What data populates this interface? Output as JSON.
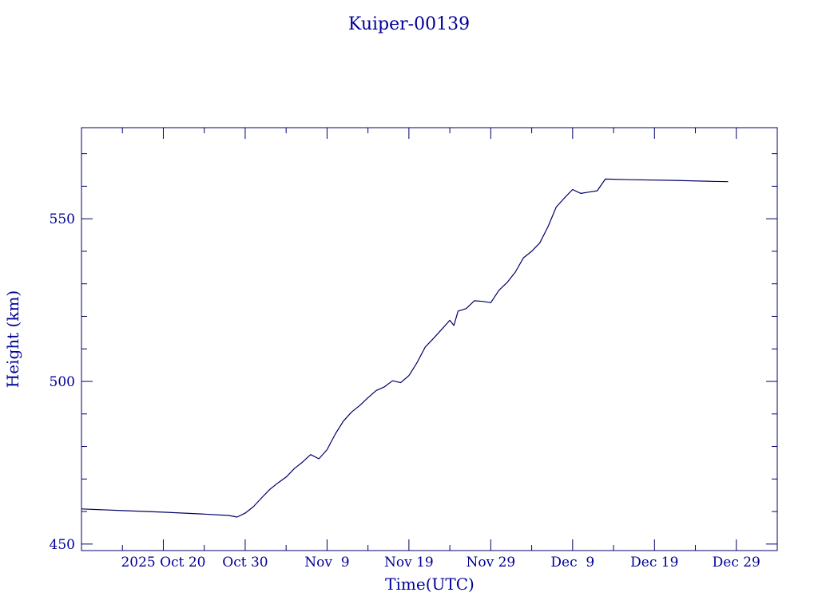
{
  "chart_data": {
    "type": "line",
    "title": "Kuiper-00139",
    "xlabel": "Time(UTC)",
    "ylabel": "Height (km)",
    "x_tick_labels": [
      "2025 Oct 20",
      "Oct 30",
      "Nov  9",
      "Nov 19",
      "Nov 29",
      "Dec  9",
      "Dec 19",
      "Dec 29"
    ],
    "x_tick_dates": [
      "2025-10-20",
      "2025-10-30",
      "2025-11-09",
      "2025-11-19",
      "2025-11-29",
      "2025-12-09",
      "2025-12-19",
      "2025-12-29"
    ],
    "xlim": [
      "2025-10-10",
      "2026-01-03"
    ],
    "ylim": [
      448,
      578
    ],
    "y_major_ticks": [
      450,
      500,
      550
    ],
    "y_minor_step": 10,
    "grid": false,
    "series": [
      {
        "color": "#000066",
        "points": [
          [
            "2025-10-10",
            460.8
          ],
          [
            "2025-10-15",
            460.3
          ],
          [
            "2025-10-20",
            459.8
          ],
          [
            "2025-10-25",
            459.2
          ],
          [
            "2025-10-28",
            458.8
          ],
          [
            "2025-10-29",
            458.3
          ],
          [
            "2025-10-30",
            459.5
          ],
          [
            "2025-10-31",
            461.5
          ],
          [
            "2025-11-01",
            464.2
          ],
          [
            "2025-11-02",
            466.8
          ],
          [
            "2025-11-03",
            468.8
          ],
          [
            "2025-11-04",
            470.6
          ],
          [
            "2025-11-05",
            473.2
          ],
          [
            "2025-11-06",
            475.2
          ],
          [
            "2025-11-07",
            477.5
          ],
          [
            "2025-11-08",
            476.2
          ],
          [
            "2025-11-09",
            479.0
          ],
          [
            "2025-11-10",
            483.8
          ],
          [
            "2025-11-11",
            487.8
          ],
          [
            "2025-11-12",
            490.6
          ],
          [
            "2025-11-13",
            492.6
          ],
          [
            "2025-11-14",
            495.0
          ],
          [
            "2025-11-15",
            497.2
          ],
          [
            "2025-11-16",
            498.3
          ],
          [
            "2025-11-17",
            500.2
          ],
          [
            "2025-11-18",
            499.6
          ],
          [
            "2025-11-19",
            501.8
          ],
          [
            "2025-11-20",
            505.8
          ],
          [
            "2025-11-21",
            510.6
          ],
          [
            "2025-11-22",
            513.2
          ],
          [
            "2025-11-23",
            516.0
          ],
          [
            "2025-11-24",
            518.8
          ],
          [
            "2025-11-24 12:00",
            517.2
          ],
          [
            "2025-11-25",
            521.6
          ],
          [
            "2025-11-26",
            522.4
          ],
          [
            "2025-11-27",
            524.8
          ],
          [
            "2025-11-28",
            524.6
          ],
          [
            "2025-11-29",
            524.2
          ],
          [
            "2025-11-30",
            528.0
          ],
          [
            "2025-12-01",
            530.4
          ],
          [
            "2025-12-02",
            533.6
          ],
          [
            "2025-12-03",
            538.0
          ],
          [
            "2025-12-04",
            540.0
          ],
          [
            "2025-12-05",
            542.6
          ],
          [
            "2025-12-06",
            547.6
          ],
          [
            "2025-12-07",
            553.6
          ],
          [
            "2025-12-08",
            556.4
          ],
          [
            "2025-12-09",
            559.0
          ],
          [
            "2025-12-10",
            557.8
          ],
          [
            "2025-12-11",
            558.2
          ],
          [
            "2025-12-12",
            558.6
          ],
          [
            "2025-12-13",
            562.2
          ],
          [
            "2025-12-16",
            562.0
          ],
          [
            "2025-12-21",
            561.8
          ],
          [
            "2025-12-26",
            561.5
          ],
          [
            "2025-12-28",
            561.4
          ]
        ]
      }
    ]
  }
}
